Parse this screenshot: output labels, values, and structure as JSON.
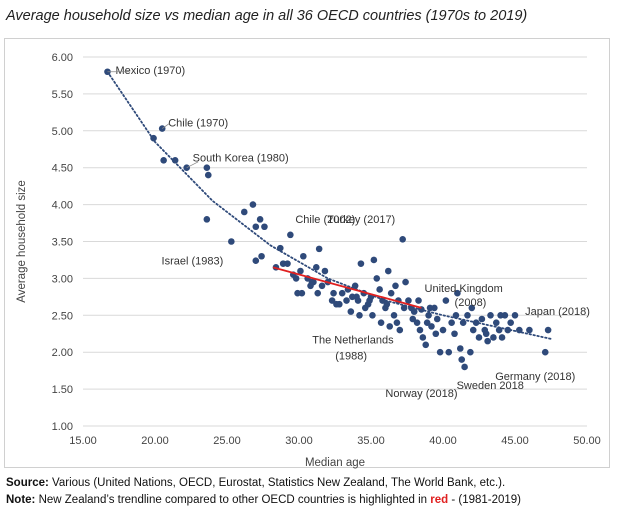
{
  "chart_data": {
    "type": "scatter",
    "title": "Average household size vs median age in all 36 OECD countries (1970s to 2019)",
    "xlabel": "Median age",
    "ylabel": "Average household size",
    "xlim": [
      15,
      50
    ],
    "ylim": [
      1,
      6
    ],
    "x_ticks": [
      "15.00",
      "20.00",
      "25.00",
      "30.00",
      "35.00",
      "40.00",
      "45.00",
      "50.00"
    ],
    "y_ticks": [
      "1.00",
      "1.50",
      "2.00",
      "2.50",
      "3.00",
      "3.50",
      "4.00",
      "4.50",
      "5.00",
      "5.50",
      "6.00"
    ],
    "grid": "horizontal",
    "point_color": "#2f4a7a",
    "trendline": {
      "style": "dotted",
      "color": "#2f4a7a",
      "x": [
        16.7,
        20,
        24,
        28,
        32,
        36,
        40,
        44,
        47.5
      ],
      "y": [
        5.8,
        4.85,
        4.05,
        3.45,
        3.0,
        2.7,
        2.5,
        2.33,
        2.18
      ]
    },
    "nz_trendline": {
      "color": "#e02020",
      "x": [
        28.2,
        38.5
      ],
      "y": [
        3.15,
        2.6
      ]
    },
    "points": [
      [
        16.7,
        5.8
      ],
      [
        19.9,
        4.9
      ],
      [
        20.5,
        5.03
      ],
      [
        20.6,
        4.6
      ],
      [
        21.4,
        4.6
      ],
      [
        22.2,
        4.5
      ],
      [
        23.6,
        4.5
      ],
      [
        23.7,
        4.4
      ],
      [
        23.6,
        3.8
      ],
      [
        25.3,
        3.5
      ],
      [
        26.2,
        3.9
      ],
      [
        26.8,
        4.0
      ],
      [
        27.0,
        3.7
      ],
      [
        27.3,
        3.8
      ],
      [
        27.6,
        3.7
      ],
      [
        27.0,
        3.24
      ],
      [
        27.4,
        3.3
      ],
      [
        28.7,
        3.41
      ],
      [
        28.9,
        3.2
      ],
      [
        29.2,
        3.2
      ],
      [
        29.4,
        3.59
      ],
      [
        29.6,
        3.05
      ],
      [
        29.9,
        2.8
      ],
      [
        30.1,
        3.1
      ],
      [
        30.3,
        3.3
      ],
      [
        30.2,
        2.8
      ],
      [
        30.6,
        3.0
      ],
      [
        31.0,
        2.95
      ],
      [
        31.2,
        3.15
      ],
      [
        31.4,
        3.4
      ],
      [
        31.6,
        2.9
      ],
      [
        31.8,
        3.1
      ],
      [
        32.0,
        2.95
      ],
      [
        32.3,
        2.7
      ],
      [
        32.6,
        2.65
      ],
      [
        33.0,
        2.8
      ],
      [
        33.3,
        2.7
      ],
      [
        33.6,
        2.55
      ],
      [
        33.9,
        2.9
      ],
      [
        34.2,
        2.5
      ],
      [
        34.0,
        2.75
      ],
      [
        34.3,
        3.2
      ],
      [
        34.5,
        2.8
      ],
      [
        34.8,
        2.65
      ],
      [
        35.0,
        2.75
      ],
      [
        35.2,
        3.25
      ],
      [
        35.4,
        3.0
      ],
      [
        35.6,
        2.85
      ],
      [
        35.8,
        2.7
      ],
      [
        36.0,
        2.6
      ],
      [
        36.2,
        3.1
      ],
      [
        36.4,
        2.8
      ],
      [
        36.6,
        2.5
      ],
      [
        36.8,
        2.4
      ],
      [
        37.0,
        2.3
      ],
      [
        37.2,
        3.53
      ],
      [
        37.4,
        2.95
      ],
      [
        37.6,
        2.7
      ],
      [
        37.8,
        2.6
      ],
      [
        38.0,
        2.55
      ],
      [
        38.2,
        2.4
      ],
      [
        38.4,
        2.3
      ],
      [
        38.6,
        2.2
      ],
      [
        38.8,
        2.1
      ],
      [
        39.0,
        2.5
      ],
      [
        39.2,
        2.35
      ],
      [
        39.4,
        2.6
      ],
      [
        39.6,
        2.45
      ],
      [
        39.8,
        2.0
      ],
      [
        40.0,
        2.3
      ],
      [
        40.2,
        2.7
      ],
      [
        40.4,
        2.0
      ],
      [
        40.6,
        2.4
      ],
      [
        40.8,
        2.25
      ],
      [
        41.0,
        2.8
      ],
      [
        41.2,
        2.05
      ],
      [
        41.3,
        1.9
      ],
      [
        41.5,
        1.8
      ],
      [
        41.7,
        2.5
      ],
      [
        41.9,
        2.0
      ],
      [
        42.1,
        2.3
      ],
      [
        42.3,
        2.4
      ],
      [
        42.5,
        2.2
      ],
      [
        42.7,
        2.45
      ],
      [
        42.9,
        2.3
      ],
      [
        43.1,
        2.15
      ],
      [
        43.3,
        2.5
      ],
      [
        43.5,
        2.2
      ],
      [
        43.7,
        2.4
      ],
      [
        43.9,
        2.3
      ],
      [
        44.1,
        2.2
      ],
      [
        44.3,
        2.5
      ],
      [
        44.5,
        2.3
      ],
      [
        44.7,
        2.4
      ],
      [
        45.0,
        2.5
      ],
      [
        45.3,
        2.3
      ],
      [
        46.0,
        2.3
      ],
      [
        47.3,
        2.3
      ],
      [
        47.1,
        2.0
      ],
      [
        36.3,
        2.35
      ],
      [
        35.1,
        2.5
      ],
      [
        34.6,
        2.6
      ],
      [
        33.4,
        2.85
      ],
      [
        32.8,
        2.65
      ],
      [
        31.3,
        2.8
      ],
      [
        30.8,
        2.9
      ],
      [
        36.9,
        2.7
      ],
      [
        37.9,
        2.45
      ],
      [
        38.9,
        2.4
      ],
      [
        39.5,
        2.25
      ],
      [
        40.9,
        2.5
      ],
      [
        42.0,
        2.6
      ],
      [
        43.0,
        2.25
      ],
      [
        44.0,
        2.5
      ],
      [
        38.3,
        2.7
      ],
      [
        36.7,
        2.9
      ],
      [
        35.7,
        2.4
      ],
      [
        34.1,
        2.7
      ],
      [
        39.1,
        2.6
      ],
      [
        41.4,
        2.4
      ],
      [
        28.4,
        3.15
      ],
      [
        29.8,
        3.0
      ],
      [
        30.9,
        2.95
      ],
      [
        32.4,
        2.8
      ],
      [
        33.7,
        2.75
      ],
      [
        34.9,
        2.7
      ],
      [
        36.1,
        2.65
      ],
      [
        37.3,
        2.6
      ],
      [
        38.5,
        2.58
      ]
    ],
    "annotations": [
      {
        "text": "Mexico (1970)",
        "x": 16.7,
        "y": 5.8
      },
      {
        "text": "Chile (1970)",
        "x": 20.5,
        "y": 5.03
      },
      {
        "text": "South Korea (1980)",
        "x": 22.2,
        "y": 4.5
      },
      {
        "text": "Israel (1983)",
        "x": 25.3,
        "y": 3.5
      },
      {
        "text": "Chile (2002)",
        "x": 29.4,
        "y": 3.59
      },
      {
        "text": "Turkey (2017)",
        "x": 31.4,
        "y": 3.4
      },
      {
        "text": "United Kingdom",
        "x": 39.9,
        "y": 2.8
      },
      {
        "text": "(2008)",
        "x": 39.9,
        "y": 2.8
      },
      {
        "text": "The Netherlands",
        "x": 33.7,
        "y": 2.55
      },
      {
        "text": "(1988)",
        "x": 33.7,
        "y": 2.55
      },
      {
        "text": "Norway (2018)",
        "x": 38.5,
        "y": 2.1
      },
      {
        "text": "Sweden 2018",
        "x": 41.5,
        "y": 1.8
      },
      {
        "text": "Germany (2018)",
        "x": 47.1,
        "y": 2.0
      },
      {
        "text": "Japan (2018)",
        "x": 47.3,
        "y": 2.3
      }
    ]
  },
  "notes": {
    "source_label": "Source:",
    "source_text": " Various (United Nations, OECD, Eurostat, Statistics New Zealand, The World Bank, etc.).",
    "note_label": "Note:",
    "note_text_1": " New Zealand’s trendline compared to other OECD countries is highlighted in ",
    "note_red": "red",
    "note_text_2": " - (1981-2019)"
  }
}
